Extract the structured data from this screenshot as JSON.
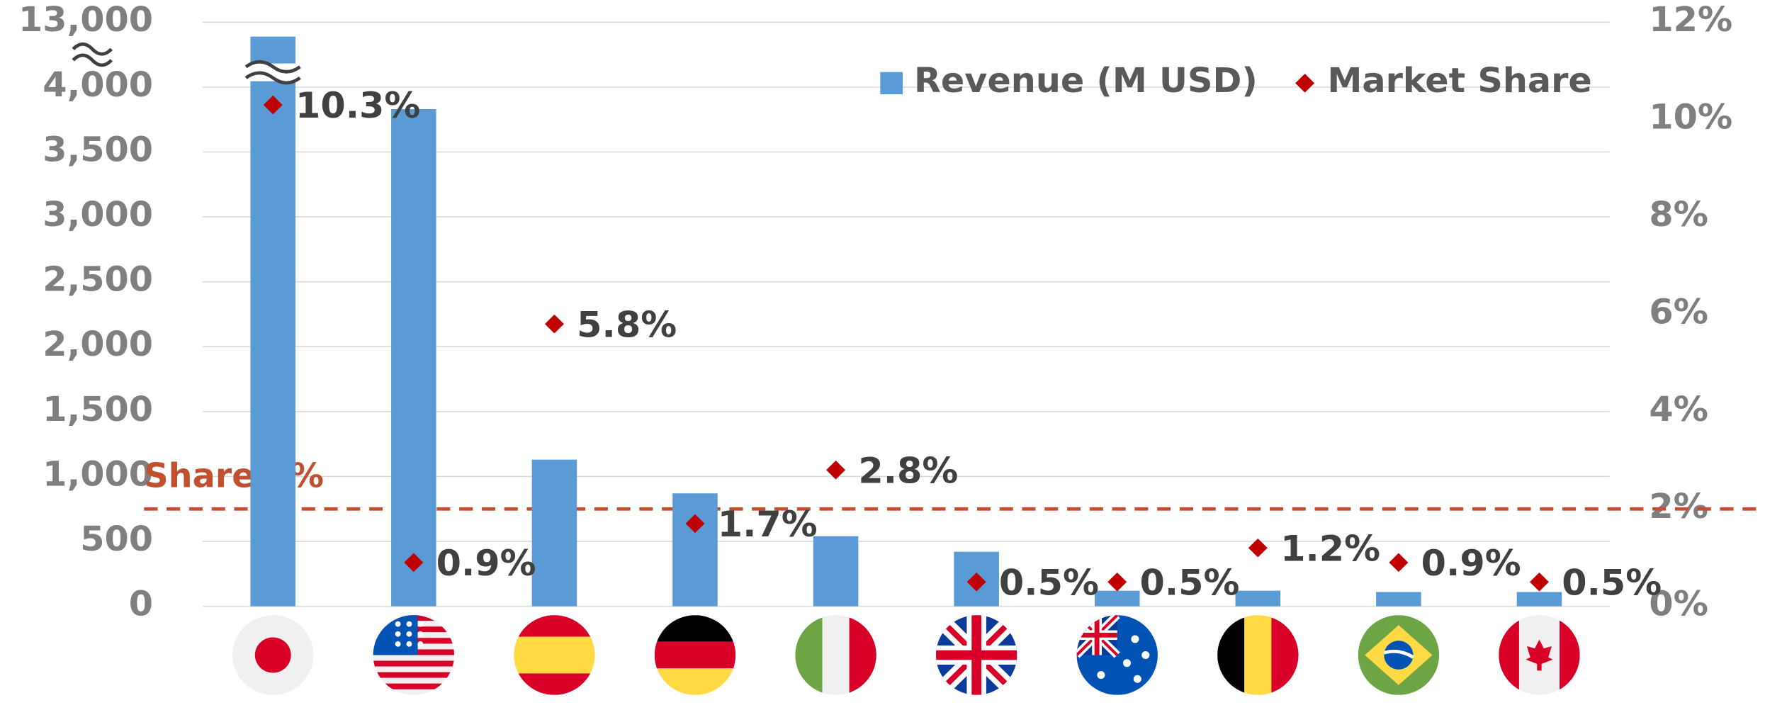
{
  "chart_data": {
    "type": "bar",
    "categories": [
      null,
      null,
      null,
      null,
      null,
      null,
      null,
      null,
      null,
      null
    ],
    "series": [
      {
        "name": "Revenue (M USD)",
        "type": "bar",
        "color": "#5b9bd5",
        "values": [
          11000,
          3830,
          1130,
          870,
          540,
          420,
          120,
          120,
          110,
          110
        ]
      },
      {
        "name": "Market Share",
        "type": "scatter",
        "axis": "y2",
        "color": "#c00000",
        "values": [
          10.3,
          0.9,
          5.8,
          1.7,
          2.8,
          0.5,
          0.5,
          1.2,
          0.9,
          0.5
        ],
        "value_labels": [
          "10.3%",
          "0.9%",
          "5.8%",
          "1.7%",
          "2.8%",
          "0.5%",
          "0.5%",
          "1.2%",
          "0.9%",
          "0.5%"
        ]
      }
    ],
    "ylim": [
      0,
      13000
    ],
    "yticks": [
      0,
      500,
      {
        "value": 1000,
        "label": "1,000"
      },
      {
        "value": 1500,
        "label": "1,500"
      },
      {
        "value": 2000,
        "label": "2,000"
      },
      {
        "value": 2500,
        "label": "2,500"
      },
      {
        "value": 3000,
        "label": "3,000"
      },
      {
        "value": 3500,
        "label": "3,500"
      },
      {
        "value": 4000,
        "label": "4,000"
      },
      {
        "value": 13000,
        "label": "13,000"
      }
    ],
    "axis_break": true,
    "y2lim": [
      0,
      12
    ],
    "y2ticks": [
      {
        "value": 0,
        "label": "0%"
      },
      {
        "value": 2,
        "label": "2%"
      },
      {
        "value": 4,
        "label": "4%"
      },
      {
        "value": 6,
        "label": "6%"
      },
      {
        "value": 8,
        "label": "8%"
      },
      {
        "value": 10,
        "label": "10%"
      },
      {
        "value": 12,
        "label": "12%"
      }
    ],
    "grid": true,
    "legend": "top-right",
    "reference_line": {
      "value": 2,
      "axis": "y2",
      "label": "Share 2%",
      "color": "#c0502e"
    }
  }
}
